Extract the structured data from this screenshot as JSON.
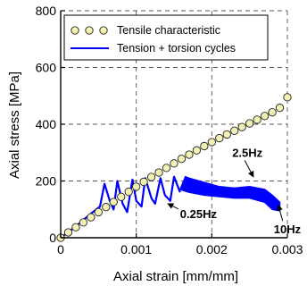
{
  "chart_data": {
    "type": "scatter",
    "xlabel": "Axial strain [mm/mm]",
    "ylabel": "Axial stress [MPa]",
    "xlim": [
      0,
      0.003
    ],
    "ylim": [
      0,
      800
    ],
    "x_ticks": [
      0,
      0.001,
      0.002,
      0.003
    ],
    "x_tick_labels": [
      "0",
      "0.001",
      "0.002",
      "0.003"
    ],
    "y_ticks": [
      0,
      200,
      400,
      600,
      800
    ],
    "y_tick_labels": [
      "0",
      "200",
      "400",
      "600",
      "800"
    ],
    "grid": true,
    "legend_position": "top-right",
    "colors": {
      "tensile_marker_fill": "#f4f1b4",
      "cycles_line": "#0000ff",
      "axis": "#000000"
    },
    "series": [
      {
        "name": "Tensile characteristic",
        "kind": "markers",
        "x": [
          0,
          0.0001,
          0.0002,
          0.0003,
          0.0004,
          0.0005,
          0.0006,
          0.0007,
          0.0008,
          0.0009,
          0.001,
          0.0011,
          0.0012,
          0.0013,
          0.0014,
          0.0015,
          0.0016,
          0.0017,
          0.0018,
          0.0019,
          0.002,
          0.0021,
          0.0022,
          0.0023,
          0.0024,
          0.0025,
          0.0026,
          0.0027,
          0.0028,
          0.0029,
          0.003
        ],
        "y": [
          0,
          19,
          37,
          54,
          72,
          90,
          108,
          126,
          144,
          162,
          180,
          197,
          214,
          230,
          246,
          262,
          278,
          293,
          308,
          323,
          337,
          351,
          364,
          377,
          390,
          403,
          416,
          429,
          442,
          458,
          495
        ]
      },
      {
        "name": "Tension + torsion cycles",
        "kind": "line",
        "x": [
          0,
          0.0002,
          0.0004,
          0.00052,
          0.00058,
          0.00065,
          0.0007,
          0.00075,
          0.00082,
          0.00088,
          0.00095,
          0.001,
          0.00107,
          0.00112,
          0.0012,
          0.00125,
          0.00132,
          0.00138,
          0.00145,
          0.0015,
          0.00158,
          0.00165,
          0.0017,
          0.0019,
          0.0021,
          0.0023,
          0.0025,
          0.0027,
          0.0028,
          0.0029
        ],
        "y": [
          0,
          40,
          85,
          110,
          190,
          130,
          100,
          200,
          120,
          90,
          205,
          130,
          110,
          210,
          140,
          120,
          210,
          150,
          130,
          215,
          160,
          215,
          210,
          195,
          180,
          175,
          180,
          170,
          150,
          125
        ]
      }
    ],
    "annotations": [
      {
        "text": "2.5Hz",
        "x": 0.00227,
        "y": 285,
        "arrow_to": [
          0.00255,
          215
        ]
      },
      {
        "text": "0.25Hz",
        "x": 0.00158,
        "y": 70,
        "arrow_to": [
          0.00142,
          120
        ]
      },
      {
        "text": "10Hz",
        "x": 0.00282,
        "y": 15,
        "arrow_to": [
          0.00288,
          115
        ]
      }
    ]
  }
}
